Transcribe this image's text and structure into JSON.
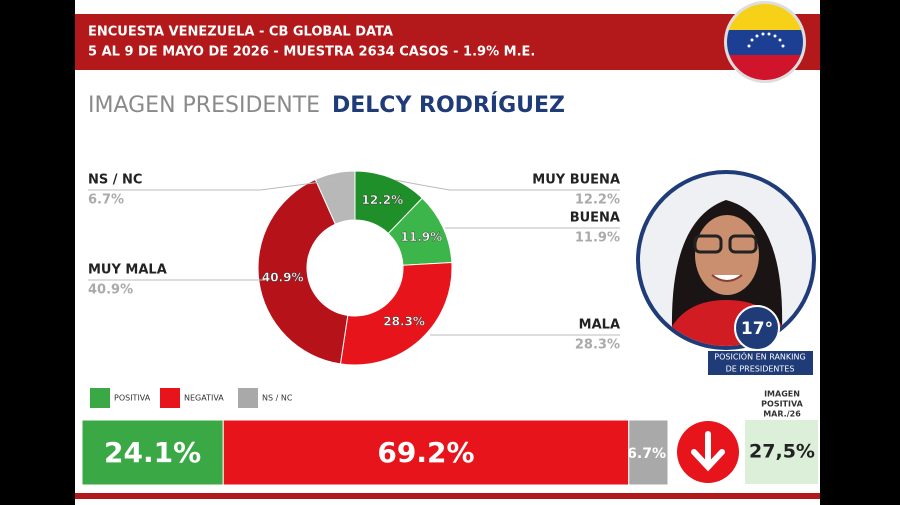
{
  "header": {
    "line1": "ENCUESTA VENEZUELA - CB GLOBAL DATA",
    "line2": "5 AL 9 DE MAYO DE 2026 - MUESTRA 2634 CASOS - 1.9% M.E."
  },
  "chart_data": {
    "type": "pie",
    "title": "IMAGEN PRESIDENTE",
    "subtitle": "DELCY RODRÍGUEZ",
    "categories": [
      "MUY BUENA",
      "BUENA",
      "MALA",
      "MUY MALA",
      "NS / NC"
    ],
    "values": [
      12.2,
      11.9,
      28.3,
      40.9,
      6.7
    ],
    "value_labels": [
      "12.2%",
      "11.9%",
      "28.3%",
      "40.9%",
      "6.7%"
    ],
    "colors": [
      "#1f8f2a",
      "#3cb64a",
      "#e8141b",
      "#b5121a",
      "#b8b8b8"
    ]
  },
  "ranking": {
    "position": "17°",
    "label_lines": [
      "POSICIÓN EN RANKING",
      "DE PRESIDENTES"
    ]
  },
  "summary": {
    "categories": [
      "POSITIVA",
      "NEGATIVA",
      "NS / NC"
    ],
    "values": [
      24.1,
      69.2,
      6.7
    ],
    "value_labels": [
      "24.1%",
      "69.2%",
      "6.7%"
    ],
    "colors": [
      "#3aa845",
      "#e8141b",
      "#a9a9a9"
    ]
  },
  "previous": {
    "label_lines": [
      "IMAGEN",
      "POSITIVA",
      "MAR./26"
    ],
    "value": 27.5,
    "value_label": "27,5%"
  }
}
